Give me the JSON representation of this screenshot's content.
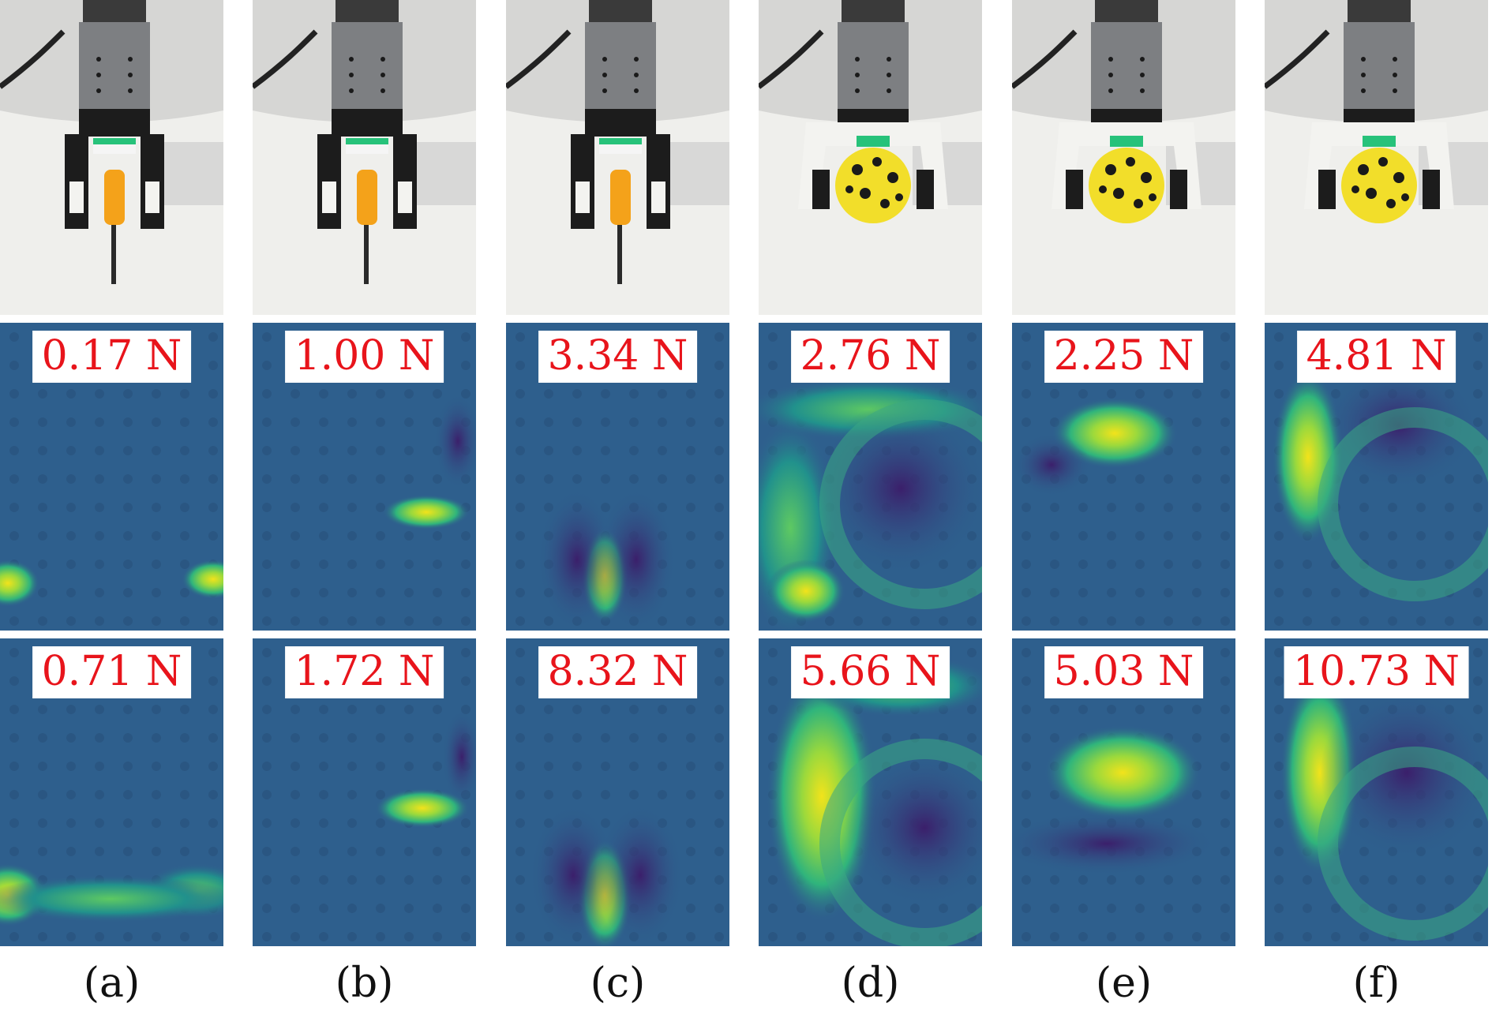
{
  "panels": [
    {
      "caption": "(a)",
      "object": "screwdriver",
      "force_top": "0.17 N",
      "force_bottom": "0.71 N"
    },
    {
      "caption": "(b)",
      "object": "screwdriver",
      "force_top": "1.00 N",
      "force_bottom": "1.72 N"
    },
    {
      "caption": "(c)",
      "object": "screwdriver",
      "force_top": "3.34 N",
      "force_bottom": "8.32 N"
    },
    {
      "caption": "(d)",
      "object": "ball",
      "force_top": "2.76 N",
      "force_bottom": "5.66 N"
    },
    {
      "caption": "(e)",
      "object": "ball",
      "force_top": "2.25 N",
      "force_bottom": "5.03 N"
    },
    {
      "caption": "(f)",
      "object": "ball",
      "force_top": "4.81 N",
      "force_bottom": "10.73 N"
    }
  ],
  "colors": {
    "force_label": "#e8141b",
    "map_low": "#3b1f6b",
    "map_mid": "#2e5f8d",
    "map_high": "#f2e31b",
    "gripper_dark": "#1c1c1c",
    "gripper_white": "#f3f3f0",
    "screwdriver_handle": "#f4a21a",
    "ball": "#f2de2a"
  }
}
